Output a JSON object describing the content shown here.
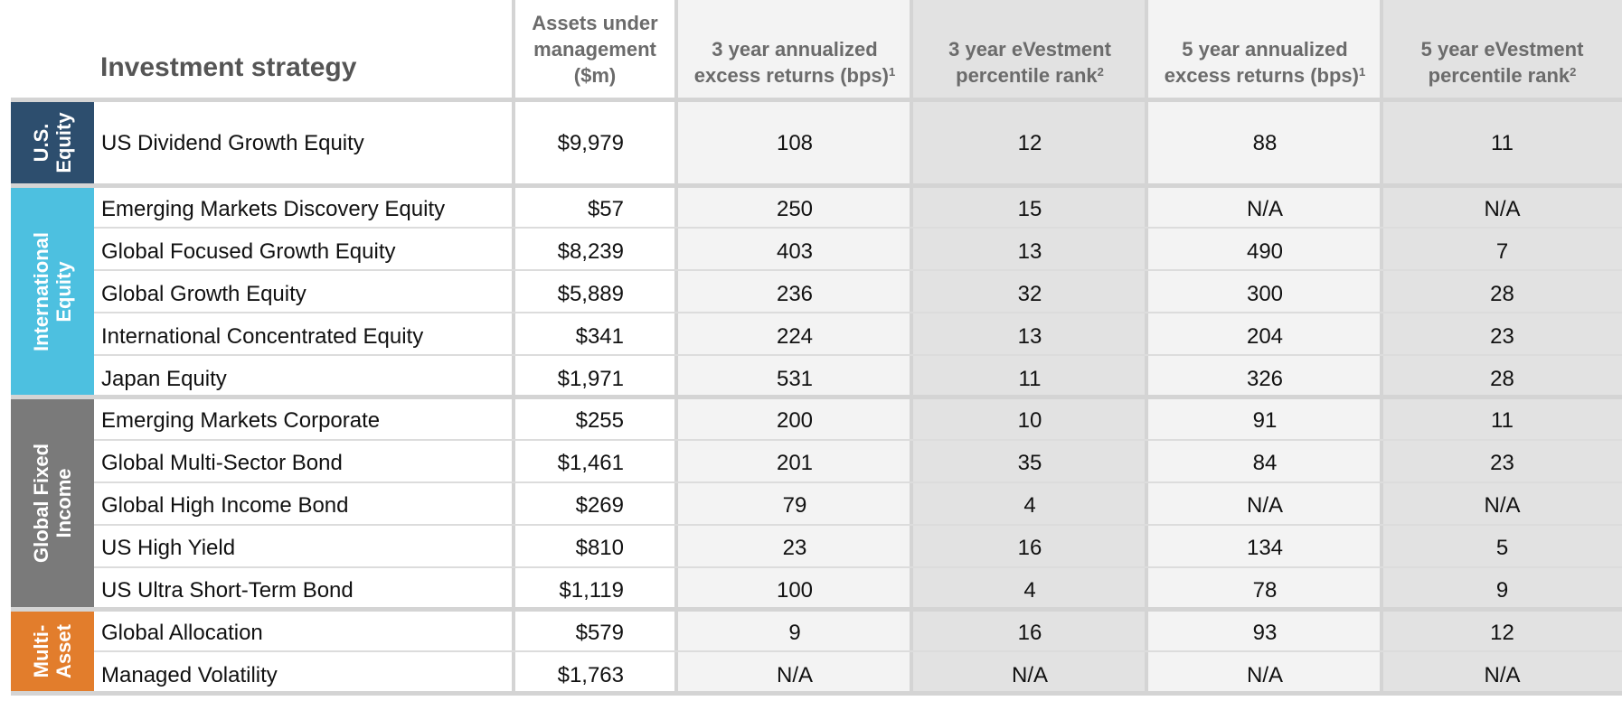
{
  "headers": {
    "strategy": "Investment strategy",
    "aum": [
      "Assets under",
      "management",
      "($m)"
    ],
    "ret3": [
      "3 year annualized",
      "excess returns (bps)"
    ],
    "ret3_note": "1",
    "rank3": [
      "3 year eVestment",
      "percentile rank"
    ],
    "rank3_note": "2",
    "ret5": [
      "5 year annualized",
      "excess returns (bps)"
    ],
    "ret5_note": "1",
    "rank5": [
      "5 year eVestment",
      "percentile rank"
    ],
    "rank5_note": "2"
  },
  "groups": [
    {
      "label": [
        "U.S.",
        "Equity"
      ],
      "color": "#2d4e6e"
    },
    {
      "label": [
        "International",
        "Equity"
      ],
      "color": "#4dc0e0"
    },
    {
      "label": [
        "Global Fixed",
        "Income"
      ],
      "color": "#7a7a7a"
    },
    {
      "label": [
        "Multi-",
        "Asset"
      ],
      "color": "#e27d2c"
    }
  ],
  "rows": [
    {
      "name": "US Dividend Growth Equity",
      "aum": "$9,979",
      "ret3": "108",
      "rank3": "12",
      "ret5": "88",
      "rank5": "11"
    },
    {
      "name": "Emerging Markets Discovery Equity",
      "aum": "$57",
      "ret3": "250",
      "rank3": "15",
      "ret5": "N/A",
      "rank5": "N/A"
    },
    {
      "name": "Global Focused Growth Equity",
      "aum": "$8,239",
      "ret3": "403",
      "rank3": "13",
      "ret5": "490",
      "rank5": "7"
    },
    {
      "name": "Global Growth Equity",
      "aum": "$5,889",
      "ret3": "236",
      "rank3": "32",
      "ret5": "300",
      "rank5": "28"
    },
    {
      "name": "International Concentrated Equity",
      "aum": "$341",
      "ret3": "224",
      "rank3": "13",
      "ret5": "204",
      "rank5": "23"
    },
    {
      "name": "Japan Equity",
      "aum": "$1,971",
      "ret3": "531",
      "rank3": "11",
      "ret5": "326",
      "rank5": "28"
    },
    {
      "name": "Emerging Markets Corporate",
      "aum": "$255",
      "ret3": "200",
      "rank3": "10",
      "ret5": "91",
      "rank5": "11"
    },
    {
      "name": "Global Multi-Sector Bond",
      "aum": "$1,461",
      "ret3": "201",
      "rank3": "35",
      "ret5": "84",
      "rank5": "23"
    },
    {
      "name": "Global High Income Bond",
      "aum": "$269",
      "ret3": "79",
      "rank3": "4",
      "ret5": "N/A",
      "rank5": "N/A"
    },
    {
      "name": "US High Yield",
      "aum": "$810",
      "ret3": "23",
      "rank3": "16",
      "ret5": "134",
      "rank5": "5"
    },
    {
      "name": "US Ultra Short-Term Bond",
      "aum": "$1,119",
      "ret3": "100",
      "rank3": "4",
      "ret5": "78",
      "rank5": "9"
    },
    {
      "name": "Global Allocation",
      "aum": "$579",
      "ret3": "9",
      "rank3": "16",
      "ret5": "93",
      "rank5": "12"
    },
    {
      "name": "Managed Volatility",
      "aum": "$1,763",
      "ret3": "N/A",
      "rank3": "N/A",
      "ret5": "N/A",
      "rank5": "N/A"
    }
  ]
}
